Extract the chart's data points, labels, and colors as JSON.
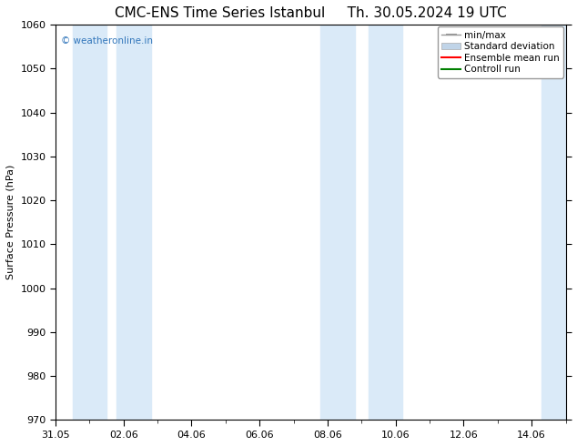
{
  "title_left": "CMC-ENS Time Series Istanbul",
  "title_right": "Th. 30.05.2024 19 UTC",
  "ylabel": "Surface Pressure (hPa)",
  "ylim": [
    970,
    1060
  ],
  "yticks": [
    970,
    980,
    990,
    1000,
    1010,
    1020,
    1030,
    1040,
    1050,
    1060
  ],
  "xtick_labels": [
    "31.05",
    "02.06",
    "04.06",
    "06.06",
    "08.06",
    "10.06",
    "12.06",
    "14.06"
  ],
  "xtick_positions": [
    0,
    2,
    4,
    6,
    8,
    10,
    12,
    14
  ],
  "xlim": [
    0,
    15
  ],
  "shaded_bands": [
    {
      "x_start": 0.5,
      "x_end": 1.5
    },
    {
      "x_start": 1.8,
      "x_end": 2.8
    },
    {
      "x_start": 7.8,
      "x_end": 8.8
    },
    {
      "x_start": 9.2,
      "x_end": 10.2
    },
    {
      "x_start": 14.3,
      "x_end": 15.0
    }
  ],
  "band_color": "#daeaf8",
  "watermark": "© weatheronline.in",
  "watermark_color": "#3377bb",
  "legend_items": [
    {
      "label": "min/max",
      "color": "#999999",
      "style": "errorbar"
    },
    {
      "label": "Standard deviation",
      "color": "#c0d4e8",
      "style": "box"
    },
    {
      "label": "Ensemble mean run",
      "color": "red",
      "style": "line"
    },
    {
      "label": "Controll run",
      "color": "green",
      "style": "line"
    }
  ],
  "bg_color": "#ffffff",
  "title_fontsize": 11,
  "axis_fontsize": 8,
  "tick_fontsize": 8,
  "legend_fontsize": 7.5
}
